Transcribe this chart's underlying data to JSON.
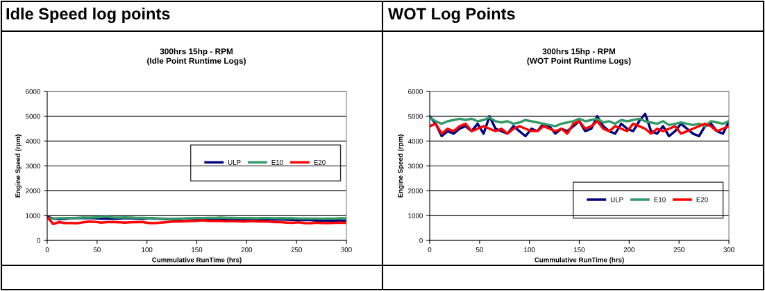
{
  "chart_data": [
    {
      "type": "line",
      "title": "Idle Speed log points",
      "subtitle": "300hrs 15hp - RPM\n(Idle Point Runtime Logs)",
      "xlabel": "Cummulative RunTime (hrs)",
      "ylabel": "Engine Speed (rpm)",
      "x": [
        0,
        6,
        12,
        18,
        24,
        30,
        36,
        42,
        48,
        54,
        60,
        66,
        72,
        78,
        84,
        90,
        96,
        102,
        108,
        114,
        120,
        126,
        132,
        138,
        144,
        150,
        156,
        162,
        168,
        174,
        180,
        186,
        192,
        198,
        204,
        210,
        216,
        222,
        228,
        234,
        240,
        246,
        252,
        258,
        264,
        270,
        276,
        282,
        288,
        294,
        300
      ],
      "xlim": [
        0,
        300
      ],
      "xticks": [
        0,
        50,
        100,
        150,
        200,
        250,
        300
      ],
      "ylim": [
        0,
        6000
      ],
      "yticks": [
        0,
        1000,
        2000,
        3000,
        4000,
        5000,
        6000
      ],
      "grid": "y",
      "legend": "center right",
      "series": [
        {
          "name": "ULP",
          "color": "#000080",
          "values": [
            950,
            880,
            860,
            870,
            900,
            900,
            910,
            900,
            890,
            880,
            880,
            870,
            880,
            900,
            890,
            880,
            870,
            900,
            880,
            870,
            860,
            870,
            860,
            880,
            870,
            860,
            860,
            850,
            850,
            860,
            850,
            860,
            850,
            840,
            850,
            850,
            860,
            850,
            840,
            850,
            840,
            830,
            820,
            830,
            820,
            800,
            810,
            800,
            790,
            800,
            790
          ]
        },
        {
          "name": "E10",
          "color": "#339966",
          "values": [
            900,
            880,
            890,
            900,
            900,
            910,
            920,
            920,
            930,
            940,
            960,
            930,
            920,
            930,
            920,
            910,
            910,
            900,
            890,
            880,
            870,
            870,
            880,
            880,
            890,
            900,
            900,
            910,
            910,
            920,
            910,
            910,
            900,
            900,
            900,
            890,
            900,
            900,
            890,
            900,
            890,
            890,
            880,
            880,
            880,
            880,
            870,
            880,
            880,
            890,
            890
          ]
        },
        {
          "name": "E20",
          "color": "#ff0000",
          "values": [
            950,
            660,
            740,
            700,
            700,
            690,
            730,
            760,
            750,
            720,
            740,
            740,
            730,
            720,
            730,
            740,
            740,
            700,
            700,
            720,
            740,
            760,
            760,
            770,
            780,
            790,
            810,
            780,
            780,
            790,
            770,
            780,
            770,
            760,
            780,
            770,
            760,
            760,
            740,
            740,
            720,
            710,
            730,
            700,
            690,
            720,
            700,
            700,
            710,
            720,
            710
          ]
        }
      ]
    },
    {
      "type": "line",
      "title": "WOT Log Points",
      "subtitle": "300hrs 15hp - RPM\n(WOT Point Runtime Logs)",
      "xlabel": "Cummulative RunTime (hrs)",
      "ylabel": "Engine Speed (rpm)",
      "x": [
        0,
        6,
        12,
        18,
        24,
        30,
        36,
        42,
        48,
        54,
        60,
        66,
        72,
        78,
        84,
        90,
        96,
        102,
        108,
        114,
        120,
        126,
        132,
        138,
        144,
        150,
        156,
        162,
        168,
        174,
        180,
        186,
        192,
        198,
        204,
        210,
        216,
        222,
        228,
        234,
        240,
        246,
        252,
        258,
        264,
        270,
        276,
        282,
        288,
        294,
        300
      ],
      "xlim": [
        0,
        300
      ],
      "xticks": [
        0,
        50,
        100,
        150,
        200,
        250,
        300
      ],
      "ylim": [
        0,
        6000
      ],
      "yticks": [
        0,
        1000,
        2000,
        3000,
        4000,
        5000,
        6000
      ],
      "grid": "y",
      "legend": "bottom right",
      "series": [
        {
          "name": "ULP",
          "color": "#000080",
          "values": [
            5000,
            4700,
            4200,
            4400,
            4300,
            4500,
            4600,
            4400,
            4700,
            4300,
            5000,
            4500,
            4400,
            4300,
            4600,
            4400,
            4200,
            4500,
            4400,
            4700,
            4600,
            4300,
            4500,
            4400,
            4600,
            4800,
            4400,
            4500,
            5000,
            4600,
            4400,
            4300,
            4700,
            4500,
            4400,
            4800,
            5100,
            4400,
            4300,
            4600,
            4200,
            4400,
            4700,
            4500,
            4300,
            4200,
            4600,
            4700,
            4400,
            4300,
            4800
          ]
        },
        {
          "name": "E10",
          "color": "#339966",
          "values": [
            4950,
            4800,
            4700,
            4800,
            4850,
            4900,
            4850,
            4900,
            4800,
            4850,
            4950,
            4800,
            4750,
            4800,
            4700,
            4750,
            4850,
            4800,
            4750,
            4700,
            4650,
            4600,
            4700,
            4750,
            4800,
            4900,
            4800,
            4850,
            4900,
            4750,
            4800,
            4700,
            4850,
            4800,
            4850,
            4900,
            4800,
            4750,
            4700,
            4800,
            4650,
            4700,
            4750,
            4700,
            4650,
            4700,
            4600,
            4800,
            4750,
            4700,
            4800
          ]
        },
        {
          "name": "E20",
          "color": "#ff0000",
          "values": [
            4600,
            4700,
            4300,
            4500,
            4400,
            4600,
            4700,
            4400,
            4500,
            4600,
            4500,
            4400,
            4500,
            4300,
            4500,
            4600,
            4500,
            4400,
            4400,
            4600,
            4500,
            4400,
            4500,
            4300,
            4700,
            4800,
            4500,
            4600,
            4800,
            4500,
            4400,
            4600,
            4500,
            4400,
            4700,
            4600,
            4500,
            4300,
            4500,
            4400,
            4500,
            4600,
            4300,
            4400,
            4500,
            4600,
            4700,
            4600,
            4400,
            4500,
            4600
          ]
        }
      ]
    }
  ]
}
